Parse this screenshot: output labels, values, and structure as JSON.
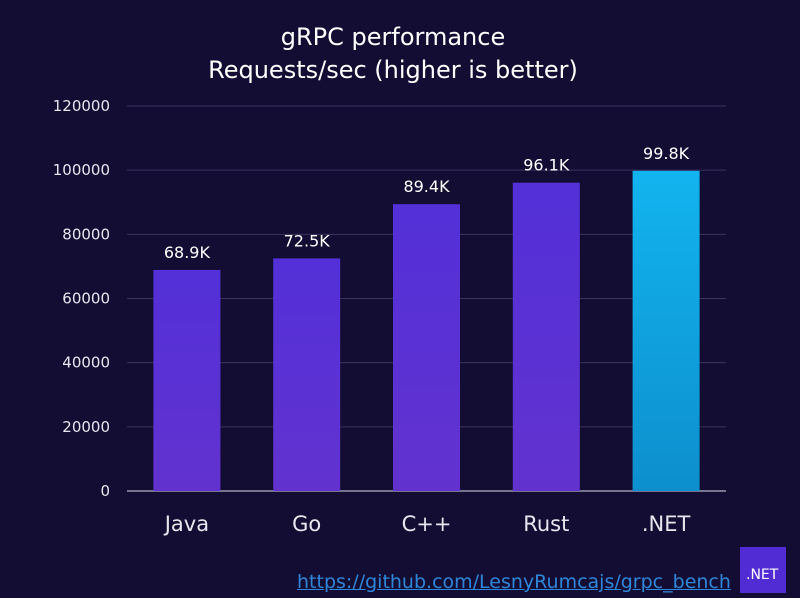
{
  "chart_data": {
    "type": "bar",
    "title": "gRPC performance",
    "subtitle": "Requests/sec (higher is better)",
    "categories": [
      "Java",
      "Go",
      "C++",
      "Rust",
      ".NET"
    ],
    "values": [
      68900,
      72500,
      89400,
      96100,
      99800
    ],
    "data_labels": [
      "68.9K",
      "72.5K",
      "89.4K",
      "96.1K",
      "99.8K"
    ],
    "ylim": [
      0,
      120000
    ],
    "yticks": [
      0,
      20000,
      40000,
      60000,
      80000,
      100000,
      120000
    ],
    "xlabel": "",
    "ylabel": "",
    "grid": true,
    "legend": "none",
    "colors": {
      "Java": "#5a2fd6",
      "Go": "#5a2fd6",
      "C++": "#5a2fd6",
      "Rust": "#5a2fd6",
      ".NET": "#1aa6e6"
    }
  },
  "footer": {
    "source_url": "https://github.com/LesnyRumcajs/grpc_bench",
    "logo_text": ".NET"
  },
  "theme": {
    "background": "#140d33",
    "link_color": "#2f86d8",
    "badge_color": "#512bd4"
  }
}
